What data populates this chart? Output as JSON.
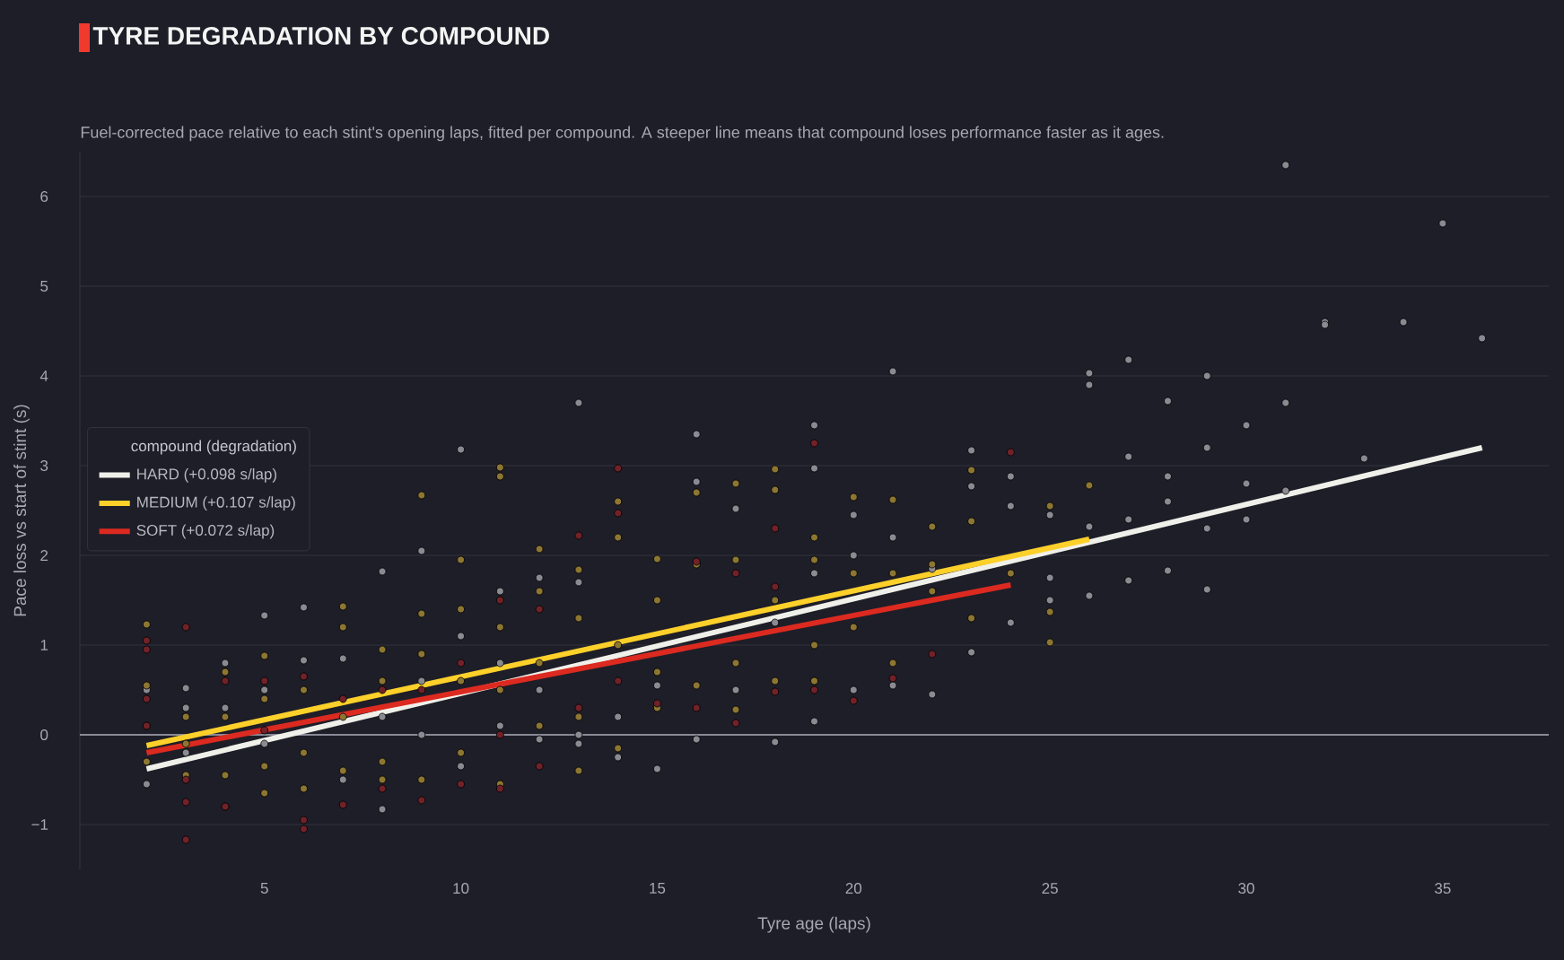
{
  "chart_data": {
    "type": "scatter",
    "title": "TYRE DEGRADATION BY COMPOUND",
    "subtitle": "Fuel-corrected pace relative to each stint's opening laps, fitted per compound. A steeper line means that compound loses performance faster as it ages.",
    "xlabel": "Tyre age (laps)",
    "ylabel": "Pace loss vs start of stint (s)",
    "legend_title": "compound (degradation)",
    "xlim": [
      0.3,
      37.7
    ],
    "ylim": [
      -1.5,
      6.5
    ],
    "xticks": [
      5,
      10,
      15,
      20,
      25,
      30,
      35
    ],
    "yticks": [
      {
        "value": -1,
        "label": "−1"
      },
      0,
      1,
      2,
      3,
      4,
      5,
      6
    ],
    "grid": "y",
    "legend": "left",
    "ref_lines": [
      {
        "axis": "y",
        "value": 0,
        "color": "#8a8a96"
      }
    ],
    "series": [
      {
        "type": "scatter",
        "marker": "circle",
        "color": "#8a8a92",
        "x": [
          2,
          2,
          3,
          3,
          3,
          4,
          4,
          5,
          5,
          5,
          6,
          6,
          7,
          7,
          8,
          8,
          8,
          9,
          9,
          9,
          10,
          10,
          10,
          11,
          11,
          11,
          12,
          12,
          12,
          13,
          13,
          13,
          13,
          14,
          14,
          15,
          15,
          16,
          16,
          16,
          17,
          17,
          18,
          18,
          19,
          19,
          19,
          19,
          20,
          20,
          20,
          21,
          21,
          21,
          22,
          22,
          23,
          23,
          23,
          24,
          24,
          24,
          25,
          25,
          25,
          26,
          26,
          26,
          26,
          27,
          27,
          27,
          27,
          28,
          28,
          28,
          28,
          29,
          29,
          29,
          29,
          30,
          30,
          30,
          31,
          31,
          31,
          32,
          32,
          33,
          34,
          35,
          36
        ],
        "values": [
          -0.55,
          0.5,
          0.52,
          0.3,
          -0.2,
          0.8,
          0.3,
          1.33,
          0.5,
          -0.1,
          1.42,
          0.83,
          0.85,
          -0.5,
          1.82,
          -0.83,
          0.2,
          2.05,
          0.6,
          0.0,
          3.18,
          1.1,
          -0.35,
          1.6,
          0.8,
          0.1,
          1.75,
          -0.05,
          0.5,
          3.7,
          1.7,
          0.0,
          -0.1,
          0.2,
          -0.25,
          -0.38,
          0.55,
          3.35,
          2.82,
          -0.05,
          2.52,
          0.5,
          1.25,
          -0.08,
          3.45,
          2.97,
          1.8,
          0.15,
          2.45,
          2.0,
          0.5,
          4.05,
          2.2,
          0.55,
          1.85,
          0.45,
          3.17,
          2.77,
          0.92,
          2.88,
          2.55,
          1.25,
          2.45,
          1.75,
          1.5,
          4.03,
          3.9,
          2.32,
          1.55,
          4.18,
          3.1,
          2.4,
          1.72,
          3.72,
          2.88,
          2.6,
          1.83,
          4.0,
          3.2,
          2.3,
          1.62,
          3.45,
          2.8,
          2.4,
          6.35,
          3.7,
          2.72,
          4.6,
          4.57,
          3.08,
          4.6,
          5.7,
          4.42
        ]
      },
      {
        "type": "scatter",
        "marker": "circle",
        "color": "#8c7632",
        "x": [
          2,
          2,
          2,
          2,
          3,
          3,
          3,
          4,
          4,
          4,
          4,
          5,
          5,
          5,
          5,
          6,
          6,
          6,
          7,
          7,
          7,
          7,
          8,
          8,
          8,
          8,
          9,
          9,
          9,
          9,
          10,
          10,
          10,
          10,
          11,
          11,
          11,
          11,
          11,
          12,
          12,
          12,
          12,
          13,
          13,
          13,
          13,
          14,
          14,
          14,
          14,
          15,
          15,
          15,
          15,
          16,
          16,
          16,
          17,
          17,
          17,
          17,
          18,
          18,
          18,
          18,
          19,
          19,
          19,
          19,
          20,
          20,
          20,
          21,
          21,
          21,
          22,
          22,
          22,
          23,
          23,
          23,
          24,
          25,
          25,
          25,
          26
        ],
        "values": [
          1.23,
          0.55,
          0.1,
          -0.3,
          0.2,
          -0.1,
          -0.45,
          0.7,
          0.2,
          -0.45,
          -0.8,
          0.88,
          0.4,
          -0.35,
          -0.65,
          0.5,
          -0.2,
          -0.6,
          1.43,
          1.2,
          0.2,
          -0.4,
          0.95,
          0.6,
          -0.3,
          -0.5,
          2.67,
          1.35,
          0.9,
          -0.5,
          1.95,
          1.4,
          0.6,
          -0.2,
          2.98,
          2.88,
          1.2,
          0.5,
          -0.55,
          2.07,
          1.6,
          0.8,
          0.1,
          1.84,
          1.3,
          0.2,
          -0.4,
          2.6,
          2.2,
          1.0,
          -0.15,
          1.96,
          1.5,
          0.7,
          0.3,
          2.7,
          1.9,
          0.55,
          2.8,
          1.95,
          0.8,
          0.28,
          2.96,
          2.73,
          1.5,
          0.6,
          2.2,
          1.95,
          1.0,
          0.6,
          2.65,
          1.8,
          1.2,
          2.62,
          1.8,
          0.8,
          2.32,
          1.9,
          1.6,
          2.95,
          2.38,
          1.3,
          1.8,
          2.55,
          1.37,
          1.03,
          2.78
        ]
      },
      {
        "type": "scatter",
        "marker": "circle",
        "color": "#702228",
        "x": [
          2,
          2,
          2,
          2,
          3,
          3,
          3,
          3,
          4,
          4,
          5,
          5,
          6,
          6,
          6,
          7,
          7,
          8,
          8,
          9,
          9,
          10,
          10,
          11,
          11,
          11,
          12,
          12,
          13,
          13,
          14,
          14,
          14,
          15,
          16,
          16,
          17,
          17,
          18,
          18,
          18,
          19,
          19,
          20,
          21,
          22,
          24
        ],
        "values": [
          1.05,
          0.95,
          0.4,
          0.1,
          1.2,
          -0.75,
          -1.17,
          -0.5,
          0.6,
          -0.8,
          0.6,
          0.05,
          0.65,
          -0.95,
          -1.05,
          0.4,
          -0.78,
          0.5,
          -0.6,
          0.5,
          -0.73,
          0.8,
          -0.55,
          1.5,
          0.0,
          -0.6,
          1.4,
          -0.35,
          2.22,
          0.3,
          2.97,
          2.47,
          0.6,
          0.35,
          1.93,
          0.3,
          1.8,
          0.13,
          2.3,
          1.65,
          0.48,
          3.25,
          0.5,
          0.38,
          0.63,
          0.9,
          3.15
        ]
      },
      {
        "type": "line",
        "marker": "none",
        "name": "HARD  (+0.098 s/lap)",
        "color": "#f0f0ea",
        "x": [
          2,
          36
        ],
        "values": [
          -0.38,
          3.2
        ]
      },
      {
        "type": "line",
        "marker": "none",
        "name": "MEDIUM  (+0.107 s/lap)",
        "color": "#fdd02a",
        "x": [
          2,
          26
        ],
        "values": [
          -0.12,
          2.18
        ]
      },
      {
        "type": "line",
        "marker": "none",
        "name": "SOFT  (+0.072 s/lap)",
        "color": "#dc2a20",
        "x": [
          2,
          24
        ],
        "values": [
          -0.2,
          1.67
        ]
      }
    ]
  }
}
